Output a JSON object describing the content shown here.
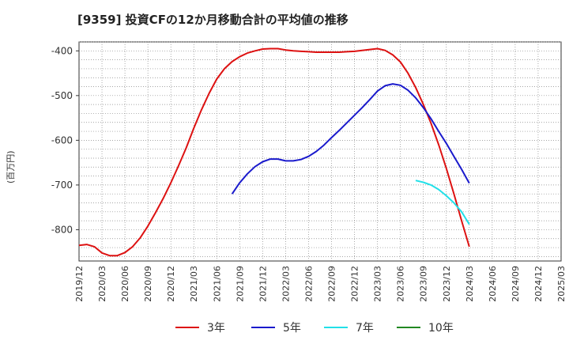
{
  "chart_data": {
    "type": "line",
    "title": "[9359]  投資CFの12か月移動合計の平均値の推移",
    "ylabel": "(百万円)",
    "xlabel": "",
    "ylim": [
      -870,
      -380
    ],
    "yticks": [
      -400,
      -500,
      -600,
      -700,
      -800
    ],
    "xticks": [
      "2019/12",
      "2020/03",
      "2020/06",
      "2020/09",
      "2020/12",
      "2021/03",
      "2021/06",
      "2021/09",
      "2021/12",
      "2022/03",
      "2022/06",
      "2022/09",
      "2022/12",
      "2023/03",
      "2023/06",
      "2023/09",
      "2023/12",
      "2024/03",
      "2024/06",
      "2024/09",
      "2024/12",
      "2025/03"
    ],
    "grid": true,
    "legend_position": "bottom",
    "series": [
      {
        "name": "3年",
        "color": "#dd1111",
        "x": [
          "2019/12",
          "2020/01",
          "2020/02",
          "2020/03",
          "2020/04",
          "2020/05",
          "2020/06",
          "2020/07",
          "2020/08",
          "2020/09",
          "2020/10",
          "2020/11",
          "2020/12",
          "2021/01",
          "2021/02",
          "2021/03",
          "2021/04",
          "2021/05",
          "2021/06",
          "2021/07",
          "2021/08",
          "2021/09",
          "2021/10",
          "2021/11",
          "2021/12",
          "2022/01",
          "2022/02",
          "2022/03",
          "2022/04",
          "2022/05",
          "2022/06",
          "2022/07",
          "2022/08",
          "2022/09",
          "2022/10",
          "2022/11",
          "2022/12",
          "2023/01",
          "2023/02",
          "2023/03",
          "2023/04",
          "2023/05",
          "2023/06",
          "2023/07",
          "2023/08",
          "2023/09",
          "2023/10",
          "2023/11",
          "2023/12",
          "2024/01",
          "2024/02",
          "2024/03"
        ],
        "values": [
          -835,
          -833,
          -838,
          -852,
          -858,
          -858,
          -851,
          -838,
          -818,
          -792,
          -762,
          -730,
          -695,
          -657,
          -617,
          -573,
          -532,
          -495,
          -463,
          -440,
          -424,
          -413,
          -405,
          -400,
          -396,
          -395,
          -395,
          -398,
          -400,
          -401,
          -402,
          -403,
          -403,
          -403,
          -403,
          -402,
          -401,
          -399,
          -397,
          -395,
          -399,
          -409,
          -425,
          -450,
          -482,
          -520,
          -562,
          -610,
          -663,
          -720,
          -780,
          -838
        ]
      },
      {
        "name": "5年",
        "color": "#1a1acc",
        "x": [
          "2021/08",
          "2021/09",
          "2021/10",
          "2021/11",
          "2021/12",
          "2022/01",
          "2022/02",
          "2022/03",
          "2022/04",
          "2022/05",
          "2022/06",
          "2022/07",
          "2022/08",
          "2022/09",
          "2022/10",
          "2022/11",
          "2022/12",
          "2023/01",
          "2023/02",
          "2023/03",
          "2023/04",
          "2023/05",
          "2023/06",
          "2023/07",
          "2023/08",
          "2023/09",
          "2023/10",
          "2023/11",
          "2023/12",
          "2024/01",
          "2024/02",
          "2024/03"
        ],
        "values": [
          -720,
          -695,
          -675,
          -659,
          -648,
          -642,
          -642,
          -646,
          -646,
          -643,
          -636,
          -625,
          -611,
          -594,
          -578,
          -561,
          -544,
          -527,
          -509,
          -490,
          -478,
          -474,
          -477,
          -488,
          -505,
          -527,
          -552,
          -580,
          -607,
          -636,
          -665,
          -696
        ]
      },
      {
        "name": "7年",
        "color": "#22e0e8",
        "x": [
          "2023/08",
          "2023/09",
          "2023/10",
          "2023/11",
          "2023/12",
          "2024/01",
          "2024/02",
          "2024/03"
        ],
        "values": [
          -690,
          -694,
          -700,
          -710,
          -724,
          -740,
          -760,
          -788
        ]
      },
      {
        "name": "10年",
        "color": "#228822",
        "x": [],
        "values": []
      }
    ]
  }
}
